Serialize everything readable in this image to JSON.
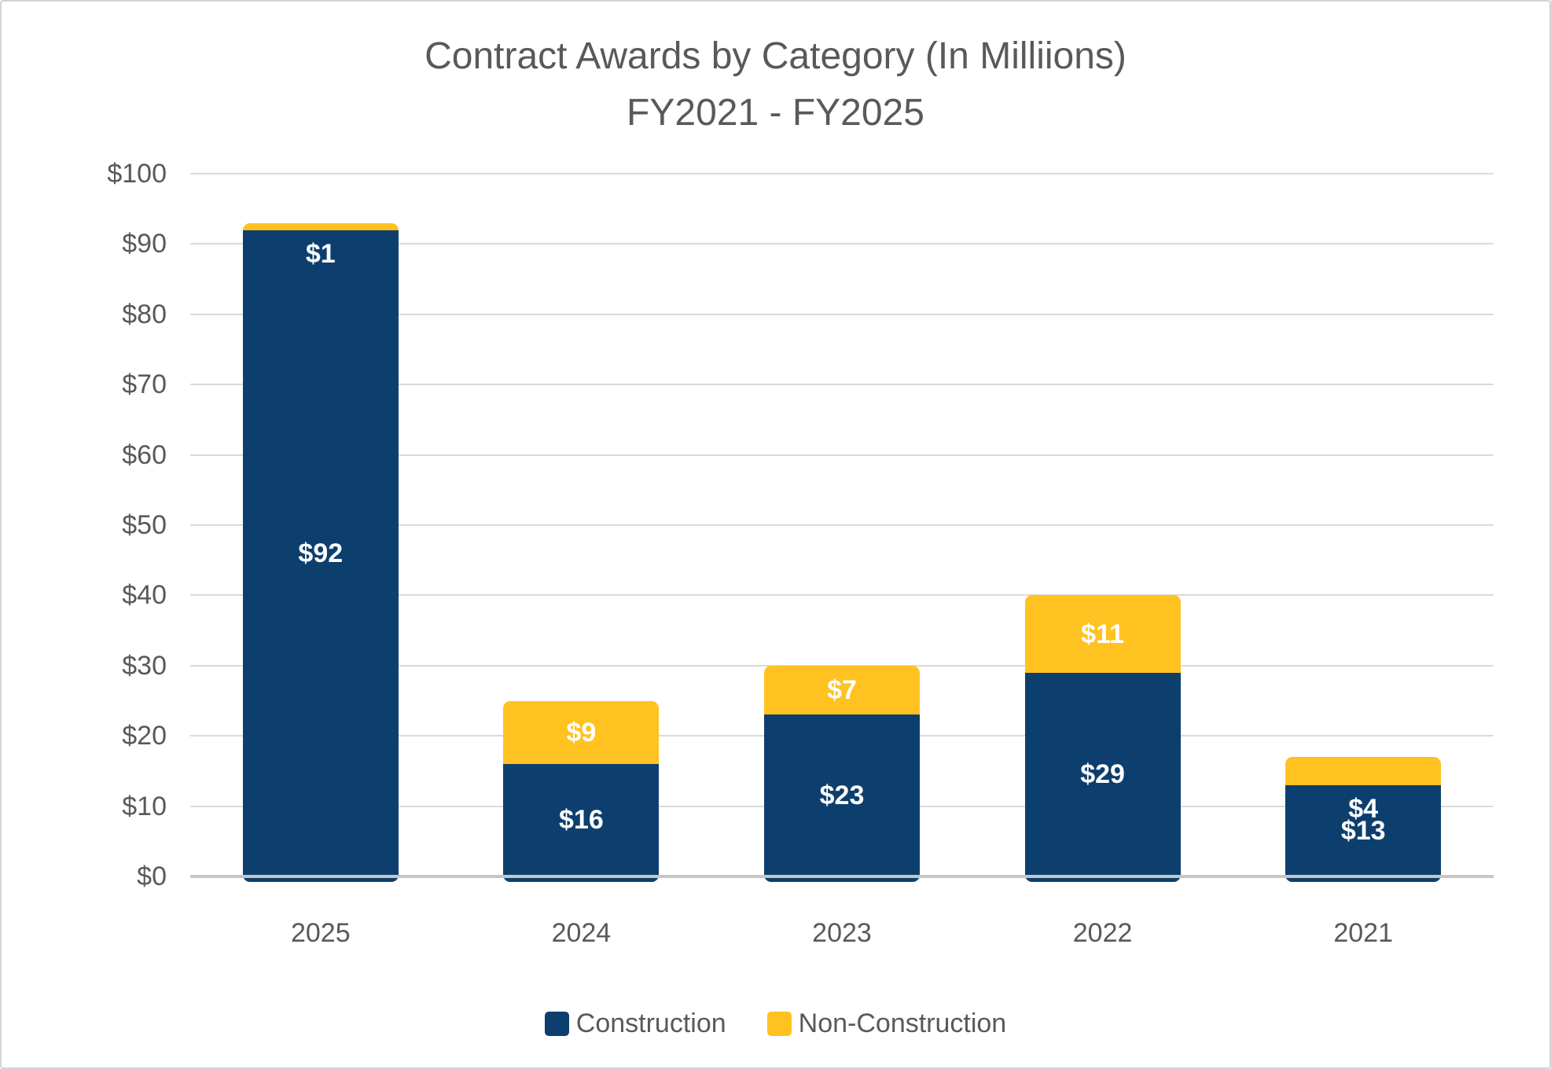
{
  "title": {
    "line1": "Contract Awards by Category (In Milliions)",
    "line2": "FY2021 - FY2025"
  },
  "chart_data": {
    "type": "bar",
    "stacked": true,
    "title": "Contract Awards by Category (In Milliions) FY2021 - FY2025",
    "categories": [
      "2025",
      "2024",
      "2023",
      "2022",
      "2021"
    ],
    "series": [
      {
        "name": "Construction",
        "color": "#0D3F6E",
        "values": [
          92,
          16,
          23,
          29,
          13
        ],
        "labels": [
          "$92",
          "$16",
          "$23",
          "$29",
          "$13"
        ]
      },
      {
        "name": "Non-Construction",
        "color": "#FFC220",
        "values": [
          1,
          9,
          7,
          11,
          4
        ],
        "labels": [
          "$1",
          "$9",
          "$7",
          "$11",
          "$4"
        ]
      }
    ],
    "xlabel": "",
    "ylabel": "",
    "ylim": [
      0,
      100
    ],
    "grid": true,
    "legend_position": "bottom",
    "yticks": [
      {
        "value": 0,
        "label": "$0"
      },
      {
        "value": 10,
        "label": "$10"
      },
      {
        "value": 20,
        "label": "$20"
      },
      {
        "value": 30,
        "label": "$30"
      },
      {
        "value": 40,
        "label": "$40"
      },
      {
        "value": 50,
        "label": "$50"
      },
      {
        "value": 60,
        "label": "$60"
      },
      {
        "value": 70,
        "label": "$70"
      },
      {
        "value": 80,
        "label": "$80"
      },
      {
        "value": 90,
        "label": "$90"
      },
      {
        "value": 100,
        "label": "$100"
      }
    ]
  },
  "colors": {
    "construction": "#0D3F6E",
    "non_construction": "#FFC220",
    "gridline": "#DADADA",
    "axis_line": "#C6C6C6",
    "text_gray": "#595959",
    "label_white": "#FFFFFF",
    "frame_border": "#D4D4D4"
  }
}
